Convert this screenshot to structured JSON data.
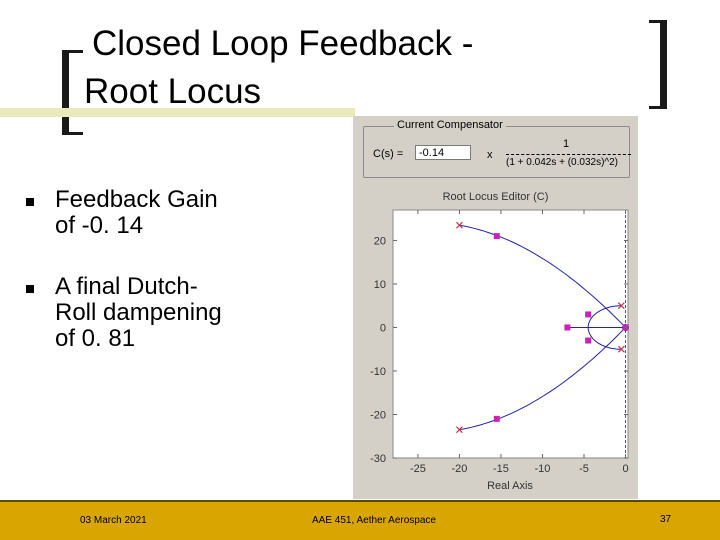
{
  "slide": {
    "title_line1": "Closed Loop Feedback -",
    "title_line2": "Root Locus",
    "bullets": [
      {
        "line1": "Feedback Gain",
        "line2": "of -0. 14"
      },
      {
        "line1": "A final Dutch-",
        "line2": "Roll dampening",
        "line3": "of 0. 81"
      }
    ],
    "footer": {
      "date": "03 March 2021",
      "center": "AAE 451, Aether Aerospace",
      "page": "37"
    }
  },
  "panel": {
    "group_title": "Current Compensator",
    "cs_label": "C(s) =",
    "gain_value": "-0.14",
    "times_sign": "x",
    "tf_numerator": "1",
    "tf_denominator": "(1 + 0.042s + (0.032s)^2)",
    "editor_title": "Root Locus Editor (C)"
  },
  "chart_data": {
    "type": "scatter",
    "xlabel": "Real Axis",
    "xlim": [
      -28,
      0.3
    ],
    "ylim": [
      -30,
      27
    ],
    "xticks": [
      -25,
      -20,
      -15,
      -10,
      -5,
      0
    ],
    "yticks": [
      20,
      10,
      0,
      -10,
      -20,
      -30
    ],
    "poles": [
      [
        -20,
        23.5
      ],
      [
        -20,
        -23.5
      ],
      [
        -0.5,
        5
      ],
      [
        -0.5,
        -5
      ],
      [
        0,
        0
      ]
    ],
    "closed_loop_poles": [
      [
        -15.5,
        21
      ],
      [
        -15.5,
        -21
      ],
      [
        -4.5,
        3
      ],
      [
        -4.5,
        -3
      ],
      [
        -7,
        0
      ],
      [
        0,
        0
      ]
    ],
    "zeros": [
      [
        0,
        0
      ]
    ],
    "colors": {
      "locus": "#2222aa",
      "pole": "#cc3344",
      "cl_pole": "#cc22bb",
      "dashed": "#555555"
    }
  }
}
